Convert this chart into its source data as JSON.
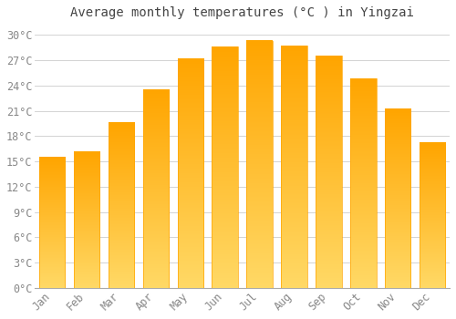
{
  "title": "Average monthly temperatures (°C ) in Yingzai",
  "months": [
    "Jan",
    "Feb",
    "Mar",
    "Apr",
    "May",
    "Jun",
    "Jul",
    "Aug",
    "Sep",
    "Oct",
    "Nov",
    "Dec"
  ],
  "temperatures": [
    15.5,
    16.1,
    19.6,
    23.5,
    27.2,
    28.6,
    29.3,
    28.7,
    27.5,
    24.8,
    21.2,
    17.2
  ],
  "bar_color_bottom": "#FFD966",
  "bar_color_top": "#FFA500",
  "background_color": "#FFFFFF",
  "grid_color": "#CCCCCC",
  "ylim": [
    0,
    31
  ],
  "yticks": [
    0,
    3,
    6,
    9,
    12,
    15,
    18,
    21,
    24,
    27,
    30
  ],
  "title_fontsize": 10,
  "tick_fontsize": 8.5,
  "title_color": "#444444",
  "tick_color": "#888888",
  "bar_width": 0.75,
  "gradient_steps": 100
}
